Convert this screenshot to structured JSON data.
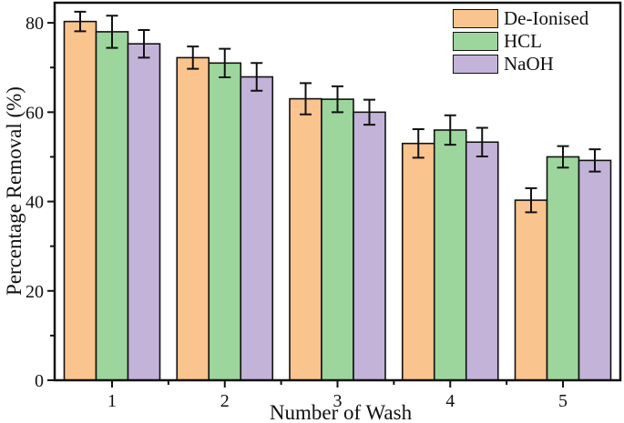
{
  "chart_data": {
    "type": "bar",
    "title": "",
    "xlabel": "Number of Wash",
    "ylabel": "Percentage Removal (%)",
    "categories": [
      "1",
      "2",
      "3",
      "4",
      "5"
    ],
    "series": [
      {
        "name": "De-Ionised",
        "color": "#FAC48E",
        "values": [
          80.3,
          72.2,
          63.0,
          53.0,
          40.3
        ],
        "errors": [
          2.2,
          2.5,
          3.5,
          3.2,
          2.7
        ]
      },
      {
        "name": "HCL",
        "color": "#9CD69C",
        "values": [
          78.0,
          71.0,
          62.9,
          56.0,
          50.0
        ],
        "errors": [
          3.6,
          3.2,
          2.9,
          3.3,
          2.4
        ]
      },
      {
        "name": "NaOH",
        "color": "#C3B3D9",
        "values": [
          75.3,
          67.9,
          60.0,
          53.3,
          49.2
        ],
        "errors": [
          3.1,
          3.1,
          2.8,
          3.2,
          2.5
        ]
      }
    ],
    "ylim": [
      0,
      84.5
    ],
    "yticks_major": [
      0,
      20,
      40,
      60,
      80
    ],
    "yticks_minor": [
      10,
      30,
      50,
      70
    ],
    "legend_position": "top-right-inside",
    "grid": false,
    "error_bars": true,
    "bar_edge_color": "#111111",
    "axis_color": "#111111"
  }
}
